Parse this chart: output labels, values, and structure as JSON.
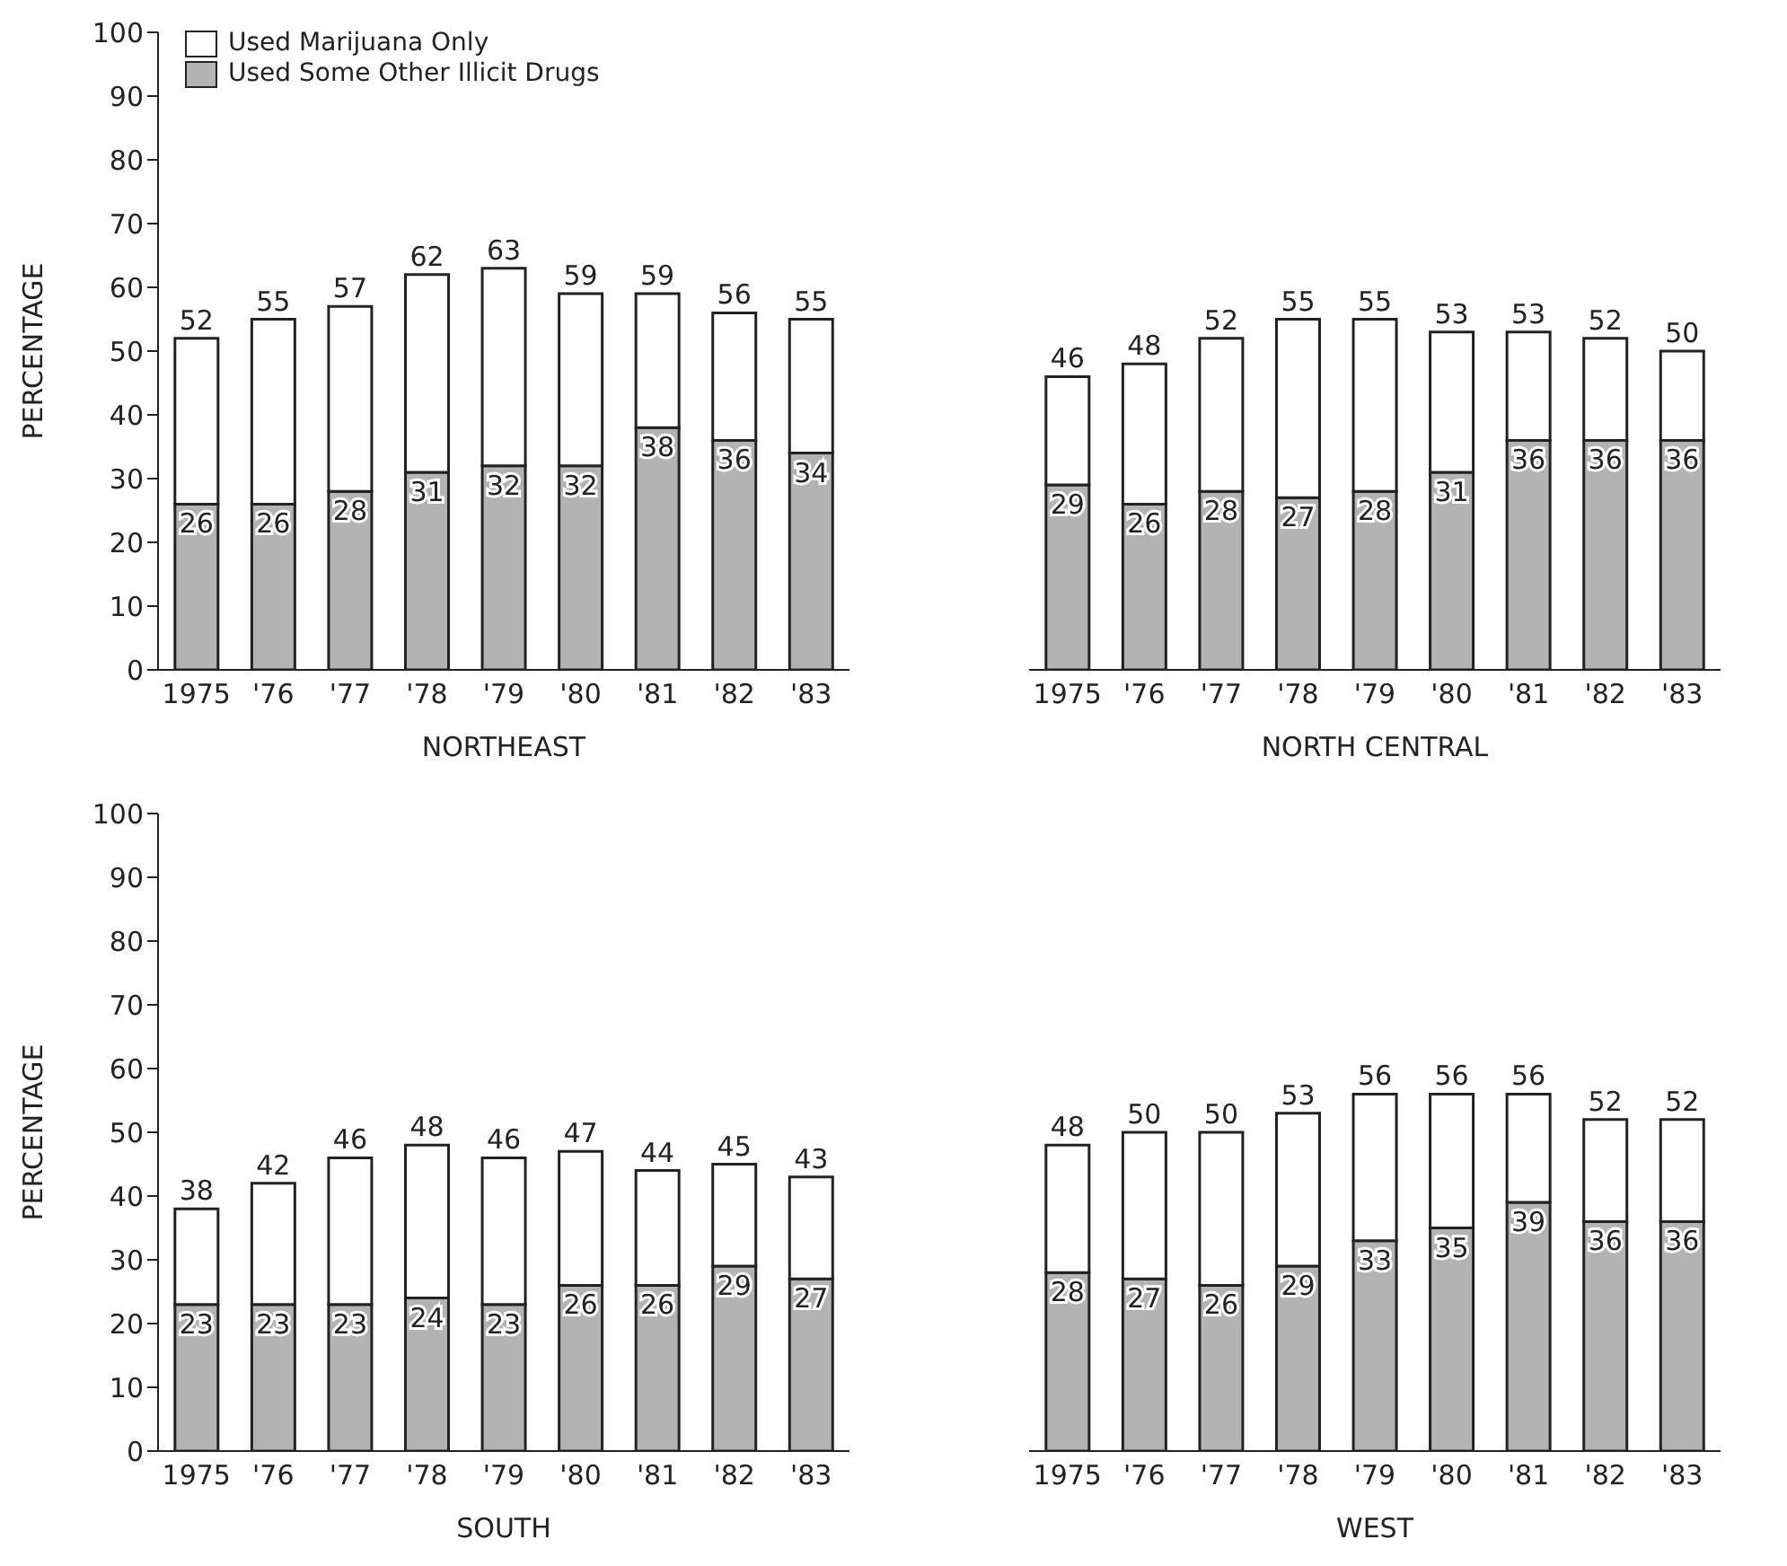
{
  "chart_data": [
    {
      "type": "bar",
      "stacked": true,
      "xlabel": "NORTHEAST",
      "ylabel": "PERCENTAGE",
      "categories": [
        "1975",
        "'76",
        "'77",
        "'78",
        "'79",
        "'80",
        "'81",
        "'82",
        "'83"
      ],
      "ylim": [
        0,
        100
      ],
      "yticks": [
        0,
        10,
        20,
        30,
        40,
        50,
        60,
        70,
        80,
        90,
        100
      ],
      "legend": "top left",
      "series": [
        {
          "name": "Used Some Other Illicit Drugs",
          "color": "#b3b3b3",
          "values": [
            26,
            26,
            28,
            31,
            32,
            32,
            38,
            36,
            34
          ],
          "value_labels": [
            "26",
            "26",
            "28",
            "31",
            "32",
            "32",
            "38",
            "36",
            "34"
          ]
        },
        {
          "name": "Used Marijuana Only",
          "color": "#ffffff",
          "values": [
            26,
            29,
            29,
            31,
            31,
            27,
            21,
            20,
            21
          ]
        }
      ],
      "totals": [
        "52",
        "55",
        "57",
        "62",
        "63",
        "59",
        "59",
        "56",
        "55"
      ]
    },
    {
      "type": "bar",
      "stacked": true,
      "xlabel": "NORTH CENTRAL",
      "categories": [
        "1975",
        "'76",
        "'77",
        "'78",
        "'79",
        "'80",
        "'81",
        "'82",
        "'83"
      ],
      "ylim": [
        0,
        100
      ],
      "tick_labels": "x",
      "series": [
        {
          "color": "#b3b3b3",
          "values": [
            29,
            26,
            28,
            27,
            28,
            31,
            36,
            36,
            36
          ],
          "value_labels": [
            "29",
            "26",
            "28",
            "27",
            "28",
            "31",
            "36",
            "36",
            "36"
          ]
        },
        {
          "color": "#ffffff",
          "values": [
            17,
            22,
            24,
            28,
            27,
            22,
            17,
            16,
            14
          ]
        }
      ],
      "totals": [
        "46",
        "48",
        "52",
        "55",
        "55",
        "53",
        "53",
        "52",
        "50"
      ]
    },
    {
      "type": "bar",
      "stacked": true,
      "xlabel": "SOUTH",
      "ylabel": "PERCENTAGE",
      "categories": [
        "1975",
        "'76",
        "'77",
        "'78",
        "'79",
        "'80",
        "'81",
        "'82",
        "'83"
      ],
      "ylim": [
        0,
        100
      ],
      "yticks": [
        0,
        10,
        20,
        30,
        40,
        50,
        60,
        70,
        80,
        90,
        100
      ],
      "series": [
        {
          "color": "#b3b3b3",
          "values": [
            23,
            23,
            23,
            24,
            23,
            26,
            26,
            29,
            27
          ],
          "value_labels": [
            "23",
            "23",
            "23",
            "24",
            "23",
            "26",
            "26",
            "29",
            "27"
          ]
        },
        {
          "color": "#ffffff",
          "values": [
            15,
            19,
            23,
            24,
            23,
            21,
            18,
            16,
            16
          ]
        }
      ],
      "totals": [
        "38",
        "42",
        "46",
        "48",
        "46",
        "47",
        "44",
        "45",
        "43"
      ]
    },
    {
      "type": "bar",
      "stacked": true,
      "xlabel": "WEST",
      "categories": [
        "1975",
        "'76",
        "'77",
        "'78",
        "'79",
        "'80",
        "'81",
        "'82",
        "'83"
      ],
      "ylim": [
        0,
        100
      ],
      "tick_labels": "x",
      "series": [
        {
          "color": "#b3b3b3",
          "values": [
            28,
            27,
            26,
            29,
            33,
            35,
            39,
            36,
            36
          ],
          "value_labels": [
            "28",
            "27",
            "26",
            "29",
            "33",
            "35",
            "39",
            "36",
            "36"
          ]
        },
        {
          "color": "#ffffff",
          "values": [
            20,
            23,
            24,
            24,
            23,
            21,
            17,
            16,
            16
          ]
        }
      ],
      "totals": [
        "48",
        "50",
        "50",
        "53",
        "56",
        "56",
        "56",
        "52",
        "52"
      ]
    }
  ]
}
